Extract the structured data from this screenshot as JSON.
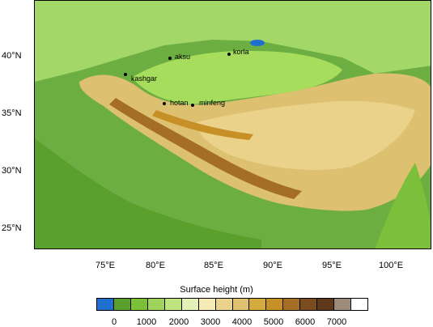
{
  "map": {
    "lat_ticks": [
      "25°N",
      "30°N",
      "35°N",
      "40°N"
    ],
    "lon_ticks": [
      "75°E",
      "80°E",
      "85°E",
      "90°E",
      "95°E",
      "100°E"
    ],
    "cities": [
      {
        "name": "korla"
      },
      {
        "name": "aksu"
      },
      {
        "name": "kashgar"
      },
      {
        "name": "hotan"
      },
      {
        "name": "minfeng"
      }
    ]
  },
  "legend": {
    "title": "Surface height  (m)",
    "tick_labels": [
      "0",
      "1000",
      "2000",
      "3000",
      "4000",
      "5000",
      "6000",
      "7000"
    ],
    "colors": [
      "#1f6fcf",
      "#5aa02c",
      "#7cbf3a",
      "#9ed45a",
      "#bfe47f",
      "#e4f1b6",
      "#f3eab6",
      "#ead28b",
      "#ddc070",
      "#d4a93f",
      "#c79026",
      "#a46f24",
      "#7c4b1e",
      "#5f3a1a",
      "#9b8b7a",
      "#ffffff"
    ]
  }
}
